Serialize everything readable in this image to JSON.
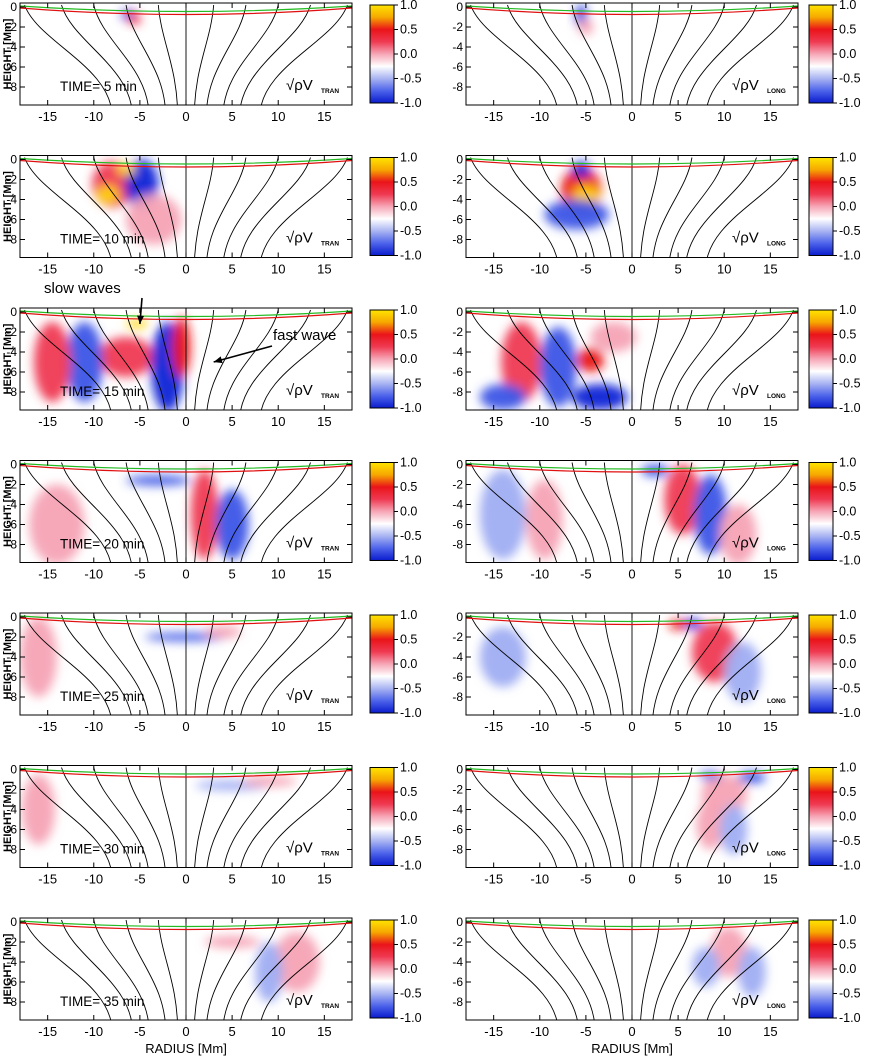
{
  "figure": {
    "colorbar_gradient": [
      "#0a1ccc",
      "#4d63ea",
      "#a9b4f2",
      "#ffffff",
      "#f6a6b6",
      "#ef3a52",
      "#ea1419",
      "#f6a800",
      "#ffe500"
    ]
  },
  "chart_data": {
    "type": "heatmap",
    "description_note": "14 panels: rows are times, left column transverse, right column longitudinal",
    "xlabel": "RADIUS [Mm]",
    "ylabel": "HEIGHT [Mm]",
    "xlim": [
      -18,
      18
    ],
    "ylim": [
      -9.8,
      0.4
    ],
    "xticks": [
      -15,
      -10,
      -5,
      0,
      5,
      10,
      15
    ],
    "yticks": [
      0,
      -2,
      -4,
      -6,
      -8
    ],
    "colorbar_ticks": [
      "1.0",
      "0.5",
      "0.0",
      "-0.5",
      "-1.0"
    ],
    "colorbar_range": [
      -1.0,
      1.0
    ],
    "quantity_left": {
      "prefix": "√ρV",
      "subscript": "TRAN"
    },
    "quantity_right": {
      "prefix": "√ρV",
      "subscript": "LONG"
    },
    "field_line_footpoints_top": [
      -17.5,
      -13.5,
      -10,
      -6.5,
      -3,
      0,
      3,
      6.5,
      10,
      13.5,
      17.5
    ],
    "field_line_footpoints_bottom": [
      -8.0,
      -5.8,
      -4.0,
      -2.2,
      -0.9,
      0,
      0.9,
      2.2,
      4.0,
      5.8,
      8.0
    ],
    "surface_curves": [
      {
        "name": "green",
        "color": "#22bb22",
        "depth_center": -0.45,
        "depth_edge": 0.1
      },
      {
        "name": "red",
        "color": "#e01010",
        "depth_center": -0.75,
        "depth_edge": -0.1
      }
    ],
    "panels": [
      {
        "time": "TIME=  5 min",
        "minutes": 5
      },
      {
        "time": "TIME=  10 min",
        "minutes": 10
      },
      {
        "time": "TIME=  15 min",
        "minutes": 15
      },
      {
        "time": "TIME=  20 min",
        "minutes": 20
      },
      {
        "time": "TIME=  25 min",
        "minutes": 25
      },
      {
        "time": "TIME=  30 min",
        "minutes": 30
      },
      {
        "time": "TIME=  35 min",
        "minutes": 35
      }
    ],
    "blobs": [
      [
        {
          "row": 0,
          "col": 0,
          "x": -6.2,
          "y": -0.8,
          "rx": 0.8,
          "ry": 0.5,
          "v": -1
        },
        {
          "row": 0,
          "col": 0,
          "x": -5.6,
          "y": -1.2,
          "rx": 0.7,
          "ry": 0.6,
          "v": 0.5
        },
        {
          "row": 0,
          "col": 1,
          "x": -5.5,
          "y": -1.0,
          "rx": 0.6,
          "ry": 1.2,
          "v": -1
        },
        {
          "row": 0,
          "col": 1,
          "x": -5.0,
          "y": -2.0,
          "rx": 0.8,
          "ry": 0.8,
          "v": 0.4
        }
      ],
      [
        {
          "row": 1,
          "col": 0,
          "x": -8.0,
          "y": -2.5,
          "rx": 2.2,
          "ry": 2.3,
          "v": 0.8
        },
        {
          "row": 1,
          "col": 0,
          "x": -8.5,
          "y": -3.5,
          "rx": 1.2,
          "ry": 0.9,
          "v": 1.3
        },
        {
          "row": 1,
          "col": 0,
          "x": -4.8,
          "y": -2.5,
          "rx": 1.8,
          "ry": 2.5,
          "v": -1
        },
        {
          "row": 1,
          "col": 0,
          "x": -6.5,
          "y": -1.0,
          "rx": 1.0,
          "ry": 0.6,
          "v": 1.3
        },
        {
          "row": 1,
          "col": 0,
          "x": -3.5,
          "y": -6.0,
          "rx": 3.0,
          "ry": 2.5,
          "v": 0.2
        },
        {
          "row": 1,
          "col": 1,
          "x": -5.5,
          "y": -3.0,
          "rx": 2.2,
          "ry": 2.2,
          "v": 0.9
        },
        {
          "row": 1,
          "col": 1,
          "x": -5.0,
          "y": -3.6,
          "rx": 1.4,
          "ry": 1.0,
          "v": 1.3
        },
        {
          "row": 1,
          "col": 1,
          "x": -6.0,
          "y": -5.5,
          "rx": 3.5,
          "ry": 1.5,
          "v": -0.6
        },
        {
          "row": 1,
          "col": 1,
          "x": -5.5,
          "y": -1.0,
          "rx": 1.0,
          "ry": 0.8,
          "v": -1
        }
      ],
      [
        {
          "row": 2,
          "col": 0,
          "x": -6.5,
          "y": -4.5,
          "rx": 3.0,
          "ry": 2.0,
          "v": 0.7
        },
        {
          "row": 2,
          "col": 0,
          "x": -11.0,
          "y": -5.0,
          "rx": 2.0,
          "ry": 4.0,
          "v": -0.7
        },
        {
          "row": 2,
          "col": 0,
          "x": -2.0,
          "y": -5.5,
          "rx": 1.8,
          "ry": 4.5,
          "v": -0.9
        },
        {
          "row": 2,
          "col": 0,
          "x": -0.5,
          "y": -3.5,
          "rx": 1.0,
          "ry": 3.0,
          "v": 1.0
        },
        {
          "row": 2,
          "col": 0,
          "x": -14.5,
          "y": -5.0,
          "rx": 2.0,
          "ry": 4.0,
          "v": 0.5
        },
        {
          "row": 2,
          "col": 0,
          "x": -5.3,
          "y": -1.2,
          "rx": 1.2,
          "ry": 0.4,
          "v": 1.3
        },
        {
          "row": 2,
          "col": 1,
          "x": -12.0,
          "y": -5.0,
          "rx": 2.2,
          "ry": 4.0,
          "v": 0.6
        },
        {
          "row": 2,
          "col": 1,
          "x": -8.0,
          "y": -5.5,
          "rx": 2.0,
          "ry": 4.0,
          "v": -0.6
        },
        {
          "row": 2,
          "col": 1,
          "x": -4.5,
          "y": -4.8,
          "rx": 1.5,
          "ry": 1.2,
          "v": 0.9
        },
        {
          "row": 2,
          "col": 1,
          "x": -3.5,
          "y": -8.5,
          "rx": 3.0,
          "ry": 1.3,
          "v": -0.9
        },
        {
          "row": 2,
          "col": 1,
          "x": -14.0,
          "y": -8.5,
          "rx": 2.5,
          "ry": 1.3,
          "v": -0.5
        },
        {
          "row": 2,
          "col": 1,
          "x": -2.0,
          "y": -2.5,
          "rx": 2.5,
          "ry": 1.5,
          "v": 0.4
        }
      ],
      [
        {
          "row": 3,
          "col": 0,
          "x": -3.0,
          "y": -1.6,
          "rx": 3.5,
          "ry": 0.5,
          "v": -0.6
        },
        {
          "row": 3,
          "col": 0,
          "x": 2.0,
          "y": -5.0,
          "rx": 1.5,
          "ry": 4.5,
          "v": 0.6
        },
        {
          "row": 3,
          "col": 0,
          "x": 5.0,
          "y": -6.0,
          "rx": 1.8,
          "ry": 3.5,
          "v": -0.5
        },
        {
          "row": 3,
          "col": 0,
          "x": -14.0,
          "y": -6.0,
          "rx": 3.0,
          "ry": 4.0,
          "v": 0.2
        },
        {
          "row": 3,
          "col": 1,
          "x": 5.5,
          "y": -3.5,
          "rx": 2.0,
          "ry": 3.5,
          "v": 0.8
        },
        {
          "row": 3,
          "col": 1,
          "x": 8.5,
          "y": -5.0,
          "rx": 1.8,
          "ry": 4.0,
          "v": -0.6
        },
        {
          "row": 3,
          "col": 1,
          "x": 2.5,
          "y": -0.6,
          "rx": 1.5,
          "ry": 0.6,
          "v": -0.6
        },
        {
          "row": 3,
          "col": 1,
          "x": -14.0,
          "y": -5.0,
          "rx": 2.5,
          "ry": 4.5,
          "v": -0.4
        },
        {
          "row": 3,
          "col": 1,
          "x": -9.5,
          "y": -5.5,
          "rx": 2.0,
          "ry": 4.0,
          "v": 0.3
        },
        {
          "row": 3,
          "col": 1,
          "x": 11.5,
          "y": -7.0,
          "rx": 2.0,
          "ry": 3.0,
          "v": 0.4
        }
      ],
      [
        {
          "row": 4,
          "col": 0,
          "x": 0.0,
          "y": -2.0,
          "rx": 4.5,
          "ry": 0.4,
          "v": -0.5
        },
        {
          "row": 4,
          "col": 0,
          "x": 4.0,
          "y": -1.5,
          "rx": 2.0,
          "ry": 0.6,
          "v": 0.3
        },
        {
          "row": 4,
          "col": 0,
          "x": -16.0,
          "y": -4.0,
          "rx": 2.0,
          "ry": 4.0,
          "v": 0.3
        },
        {
          "row": 4,
          "col": 1,
          "x": 6.5,
          "y": -0.7,
          "rx": 1.2,
          "ry": 0.5,
          "v": -1
        },
        {
          "row": 4,
          "col": 1,
          "x": 5.0,
          "y": -0.8,
          "rx": 1.0,
          "ry": 0.5,
          "v": 1.0
        },
        {
          "row": 4,
          "col": 1,
          "x": 9.0,
          "y": -3.5,
          "rx": 2.5,
          "ry": 3.0,
          "v": 0.5
        },
        {
          "row": 4,
          "col": 1,
          "x": 12.0,
          "y": -5.5,
          "rx": 2.0,
          "ry": 3.0,
          "v": -0.4
        },
        {
          "row": 4,
          "col": 1,
          "x": -14.0,
          "y": -4.0,
          "rx": 2.5,
          "ry": 3.0,
          "v": -0.3
        }
      ],
      [
        {
          "row": 5,
          "col": 0,
          "x": 5.0,
          "y": -1.6,
          "rx": 4.0,
          "ry": 0.5,
          "v": -0.45
        },
        {
          "row": 5,
          "col": 0,
          "x": 9.0,
          "y": -1.2,
          "rx": 3.0,
          "ry": 0.5,
          "v": 0.3
        },
        {
          "row": 5,
          "col": 0,
          "x": -16.0,
          "y": -4.0,
          "rx": 1.8,
          "ry": 3.5,
          "v": 0.25
        },
        {
          "row": 5,
          "col": 1,
          "x": 10.0,
          "y": -2.5,
          "rx": 2.5,
          "ry": 2.0,
          "v": 0.4
        },
        {
          "row": 5,
          "col": 1,
          "x": 13.0,
          "y": -0.8,
          "rx": 1.5,
          "ry": 0.6,
          "v": -0.5
        },
        {
          "row": 5,
          "col": 1,
          "x": 8.5,
          "y": -0.6,
          "rx": 1.2,
          "ry": 0.4,
          "v": -0.5
        },
        {
          "row": 5,
          "col": 1,
          "x": 8.5,
          "y": -5.5,
          "rx": 1.5,
          "ry": 2.5,
          "v": 0.3
        },
        {
          "row": 5,
          "col": 1,
          "x": 11.0,
          "y": -6.0,
          "rx": 1.5,
          "ry": 2.5,
          "v": -0.3
        }
      ],
      [
        {
          "row": 6,
          "col": 0,
          "x": 12.0,
          "y": -4.0,
          "rx": 2.5,
          "ry": 3.0,
          "v": 0.35
        },
        {
          "row": 6,
          "col": 0,
          "x": 9.0,
          "y": -5.0,
          "rx": 1.5,
          "ry": 3.0,
          "v": -0.3
        },
        {
          "row": 6,
          "col": 0,
          "x": 5.0,
          "y": -2.0,
          "rx": 3.0,
          "ry": 0.6,
          "v": 0.15
        },
        {
          "row": 6,
          "col": 1,
          "x": 10.5,
          "y": -3.0,
          "rx": 2.0,
          "ry": 2.5,
          "v": 0.35
        },
        {
          "row": 6,
          "col": 1,
          "x": 8.0,
          "y": -4.5,
          "rx": 1.5,
          "ry": 2.0,
          "v": -0.25
        },
        {
          "row": 6,
          "col": 1,
          "x": 13.0,
          "y": -5.0,
          "rx": 1.5,
          "ry": 2.5,
          "v": -0.25
        }
      ]
    ],
    "annotations": [
      {
        "text": "slow waves",
        "panel_row": 2,
        "panel_col": 0,
        "arrow_to": [
          -5.0,
          -1.2
        ]
      },
      {
        "text": "fast wave",
        "panel_row": 2,
        "panel_col": 0,
        "arrow_to": [
          3.0,
          -5.0
        ]
      }
    ]
  }
}
